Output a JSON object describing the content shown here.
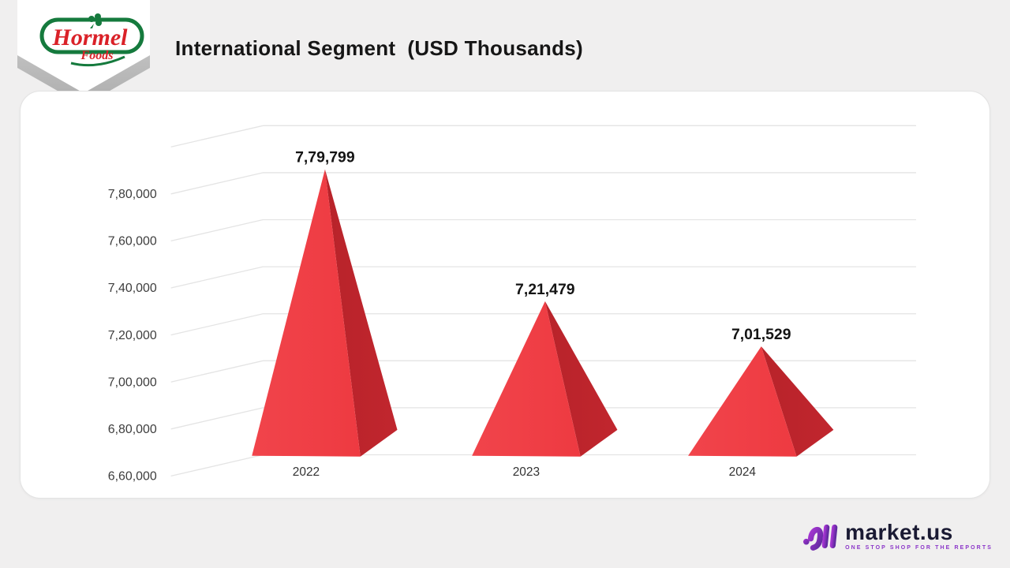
{
  "header": {
    "title": "International Segment  (USD Thousands)"
  },
  "brand_badge": {
    "name": "Hormel",
    "sub": "Foods"
  },
  "chart_data": {
    "type": "bar",
    "style": "3d-pyramid",
    "title": "International Segment (USD Thousands)",
    "categories": [
      "2022",
      "2023",
      "2024"
    ],
    "values": [
      779799,
      721479,
      701529
    ],
    "data_labels": [
      "7,79,799",
      "7,21,479",
      "7,01,529"
    ],
    "ytick_labels": [
      "7,80,000",
      "7,60,000",
      "7,40,000",
      "7,20,000",
      "7,00,000",
      "6,80,000",
      "6,60,000"
    ],
    "ylim": [
      660000,
      800000
    ],
    "grid": true,
    "legend": false,
    "colors": {
      "pyramid_front": "#ee3a41",
      "pyramid_side": "#b8232a",
      "gridline": "#e4e4e4",
      "tick_text": "#3d3d3d",
      "data_label": "#141414"
    }
  },
  "footer": {
    "logo_text": "market.us",
    "tagline": "ONE STOP SHOP FOR THE REPORTS"
  }
}
